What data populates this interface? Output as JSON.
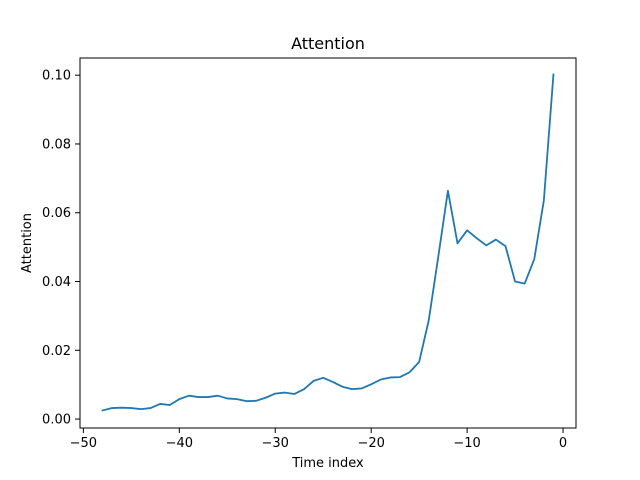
{
  "chart_data": {
    "type": "line",
    "title": "Attention",
    "xlabel": "Time index",
    "ylabel": "Attention",
    "xlim": [
      -50.35,
      1.35
    ],
    "ylim": [
      -0.0026,
      0.105
    ],
    "grid": false,
    "x_ticks": [
      -50,
      -40,
      -30,
      -20,
      -10,
      0
    ],
    "x_tick_labels": [
      "−50",
      "−40",
      "−30",
      "−20",
      "−10",
      "0"
    ],
    "y_ticks": [
      0.0,
      0.02,
      0.04,
      0.06,
      0.08,
      0.1
    ],
    "y_tick_labels": [
      "0.00",
      "0.02",
      "0.04",
      "0.06",
      "0.08",
      "0.10"
    ],
    "series": [
      {
        "color": "#1f77b4",
        "x": [
          -48,
          -47,
          -46,
          -45,
          -44,
          -43,
          -42,
          -41,
          -40,
          -39,
          -38,
          -37,
          -36,
          -35,
          -34,
          -33,
          -32,
          -31,
          -30,
          -29,
          -28,
          -27,
          -26,
          -25,
          -24,
          -23,
          -22,
          -21,
          -20,
          -19,
          -18,
          -17,
          -16,
          -15,
          -14,
          -13,
          -12,
          -11,
          -10,
          -9,
          -8,
          -7,
          -6,
          -5,
          -4,
          -3,
          -2,
          -1
        ],
        "values": [
          0.0025,
          0.0032,
          0.0033,
          0.0032,
          0.0029,
          0.0032,
          0.0044,
          0.0041,
          0.0058,
          0.0068,
          0.0064,
          0.0064,
          0.0068,
          0.006,
          0.0058,
          0.0052,
          0.0053,
          0.0062,
          0.0074,
          0.0077,
          0.0073,
          0.0087,
          0.0111,
          0.012,
          0.0108,
          0.0094,
          0.0087,
          0.0089,
          0.0101,
          0.0115,
          0.0121,
          0.0122,
          0.0136,
          0.0166,
          0.0287,
          0.0473,
          0.0664,
          0.0511,
          0.0549,
          0.0526,
          0.0505,
          0.0522,
          0.0503,
          0.04,
          0.0394,
          0.0465,
          0.0636,
          0.1002
        ]
      }
    ]
  }
}
